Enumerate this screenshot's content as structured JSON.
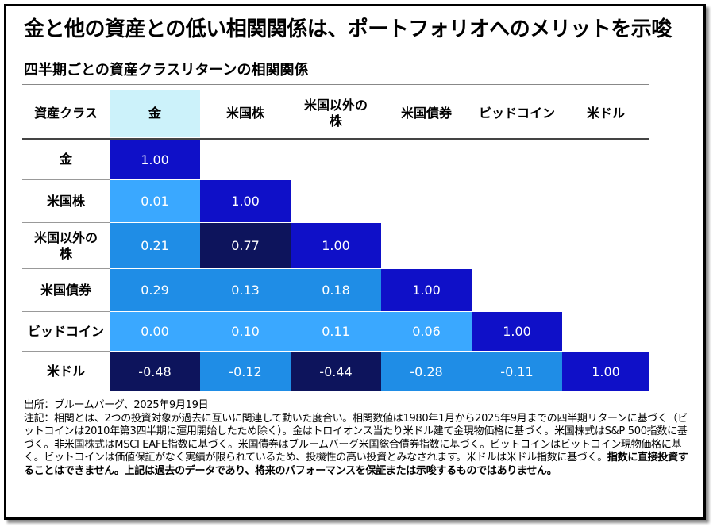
{
  "title": "金と他の資産との低い相関関係は、ポートフォリオへのメリットを示唆",
  "chart_data": {
    "type": "table",
    "subtitle": "四半期ごとの資産クラスリターンの相関関係",
    "corner_label": "資産クラス",
    "columns": [
      "金",
      "米国株",
      "米国以外の株",
      "米国債券",
      "ビッドコイン",
      "米ドル"
    ],
    "rows": [
      {
        "label": "金",
        "values": [
          "1.00"
        ]
      },
      {
        "label": "米国株",
        "values": [
          "0.01",
          "1.00"
        ]
      },
      {
        "label": "米国以外の株",
        "values": [
          "0.21",
          "0.77",
          "1.00"
        ]
      },
      {
        "label": "米国債券",
        "values": [
          "0.29",
          "0.13",
          "0.18",
          "1.00"
        ]
      },
      {
        "label": "ビッドコイン",
        "values": [
          "0.00",
          "0.10",
          "0.11",
          "0.06",
          "1.00"
        ]
      },
      {
        "label": "米ドル",
        "values": [
          "-0.48",
          "-0.12",
          "-0.44",
          "-0.28",
          "-0.11",
          "1.00"
        ]
      }
    ],
    "colors": {
      "diagonal": "#0f10c8",
      "mid": "#1f8de6",
      "low": "#3aa8ff",
      "dark": "#0d145c",
      "highlight_header": "#ccf2fa"
    }
  },
  "notes": {
    "source": "出所：ブルームバーグ、2025年9月19日",
    "body": "注記：相関とは、2つの投資対象が過去に互いに関連して動いた度合い。相関数値は1980年1月から2025年9月までの四半期リターンに基づく（ビットコインは2010年第3四半期に運用開始したため除く）。金はトロイオンス当たり米ドル建て金現物価格に基づく。米国株式はS&P 500指数に基づく。非米国株式はMSCI EAFE指数に基づく。米国債券はブルームバーグ米国総合債券指数に基づく。ビットコインはビットコイン現物価格に基く。ビットコインは価値保証がなく実績が限られているため、投機性の高い投資とみなされます。米ドルは米ドル指数に基づく。",
    "bold": "指数に直接投資することはできません。上記は過去のデータであり、将来のパフォーマンスを保証または示唆するものではありません。"
  }
}
